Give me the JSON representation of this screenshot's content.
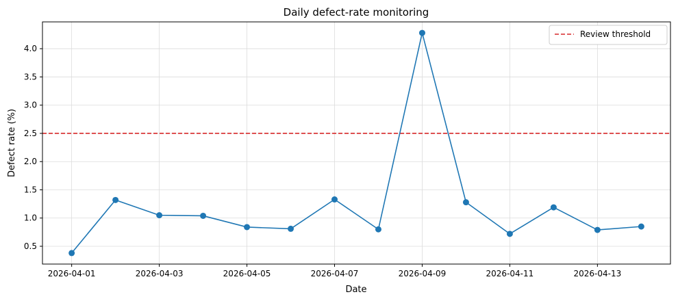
{
  "chart_data": {
    "type": "line",
    "title": "Daily defect-rate monitoring",
    "xlabel": "Date",
    "ylabel": "Defect rate (%)",
    "x": [
      "2026-04-01",
      "2026-04-02",
      "2026-04-03",
      "2026-04-04",
      "2026-04-05",
      "2026-04-06",
      "2026-04-07",
      "2026-04-08",
      "2026-04-09",
      "2026-04-10",
      "2026-04-11",
      "2026-04-12",
      "2026-04-13",
      "2026-04-14"
    ],
    "series": [
      {
        "values": [
          0.38,
          1.32,
          1.05,
          1.04,
          0.84,
          0.81,
          1.33,
          0.8,
          4.28,
          1.28,
          0.72,
          1.19,
          0.79,
          0.85
        ],
        "color": "#1f77b4",
        "marker": "circle"
      }
    ],
    "reference_lines": [
      {
        "name": "Review threshold",
        "y": 2.5,
        "color": "#d62728",
        "style": "dashed"
      }
    ],
    "xticks": [
      "2026-04-01",
      "2026-04-03",
      "2026-04-05",
      "2026-04-07",
      "2026-04-09",
      "2026-04-11",
      "2026-04-13"
    ],
    "yticks": [
      0.5,
      1.0,
      1.5,
      2.0,
      2.5,
      3.0,
      3.5,
      4.0
    ],
    "ytick_labels": [
      "0.5",
      "1.0",
      "1.5",
      "2.0",
      "2.5",
      "3.0",
      "3.5",
      "4.0"
    ],
    "xlim": [
      "2026-03-31T08:00",
      "2026-04-14T16:00"
    ],
    "ylim": [
      0.185,
      4.475
    ],
    "grid": true,
    "legend_position": "top-right"
  }
}
